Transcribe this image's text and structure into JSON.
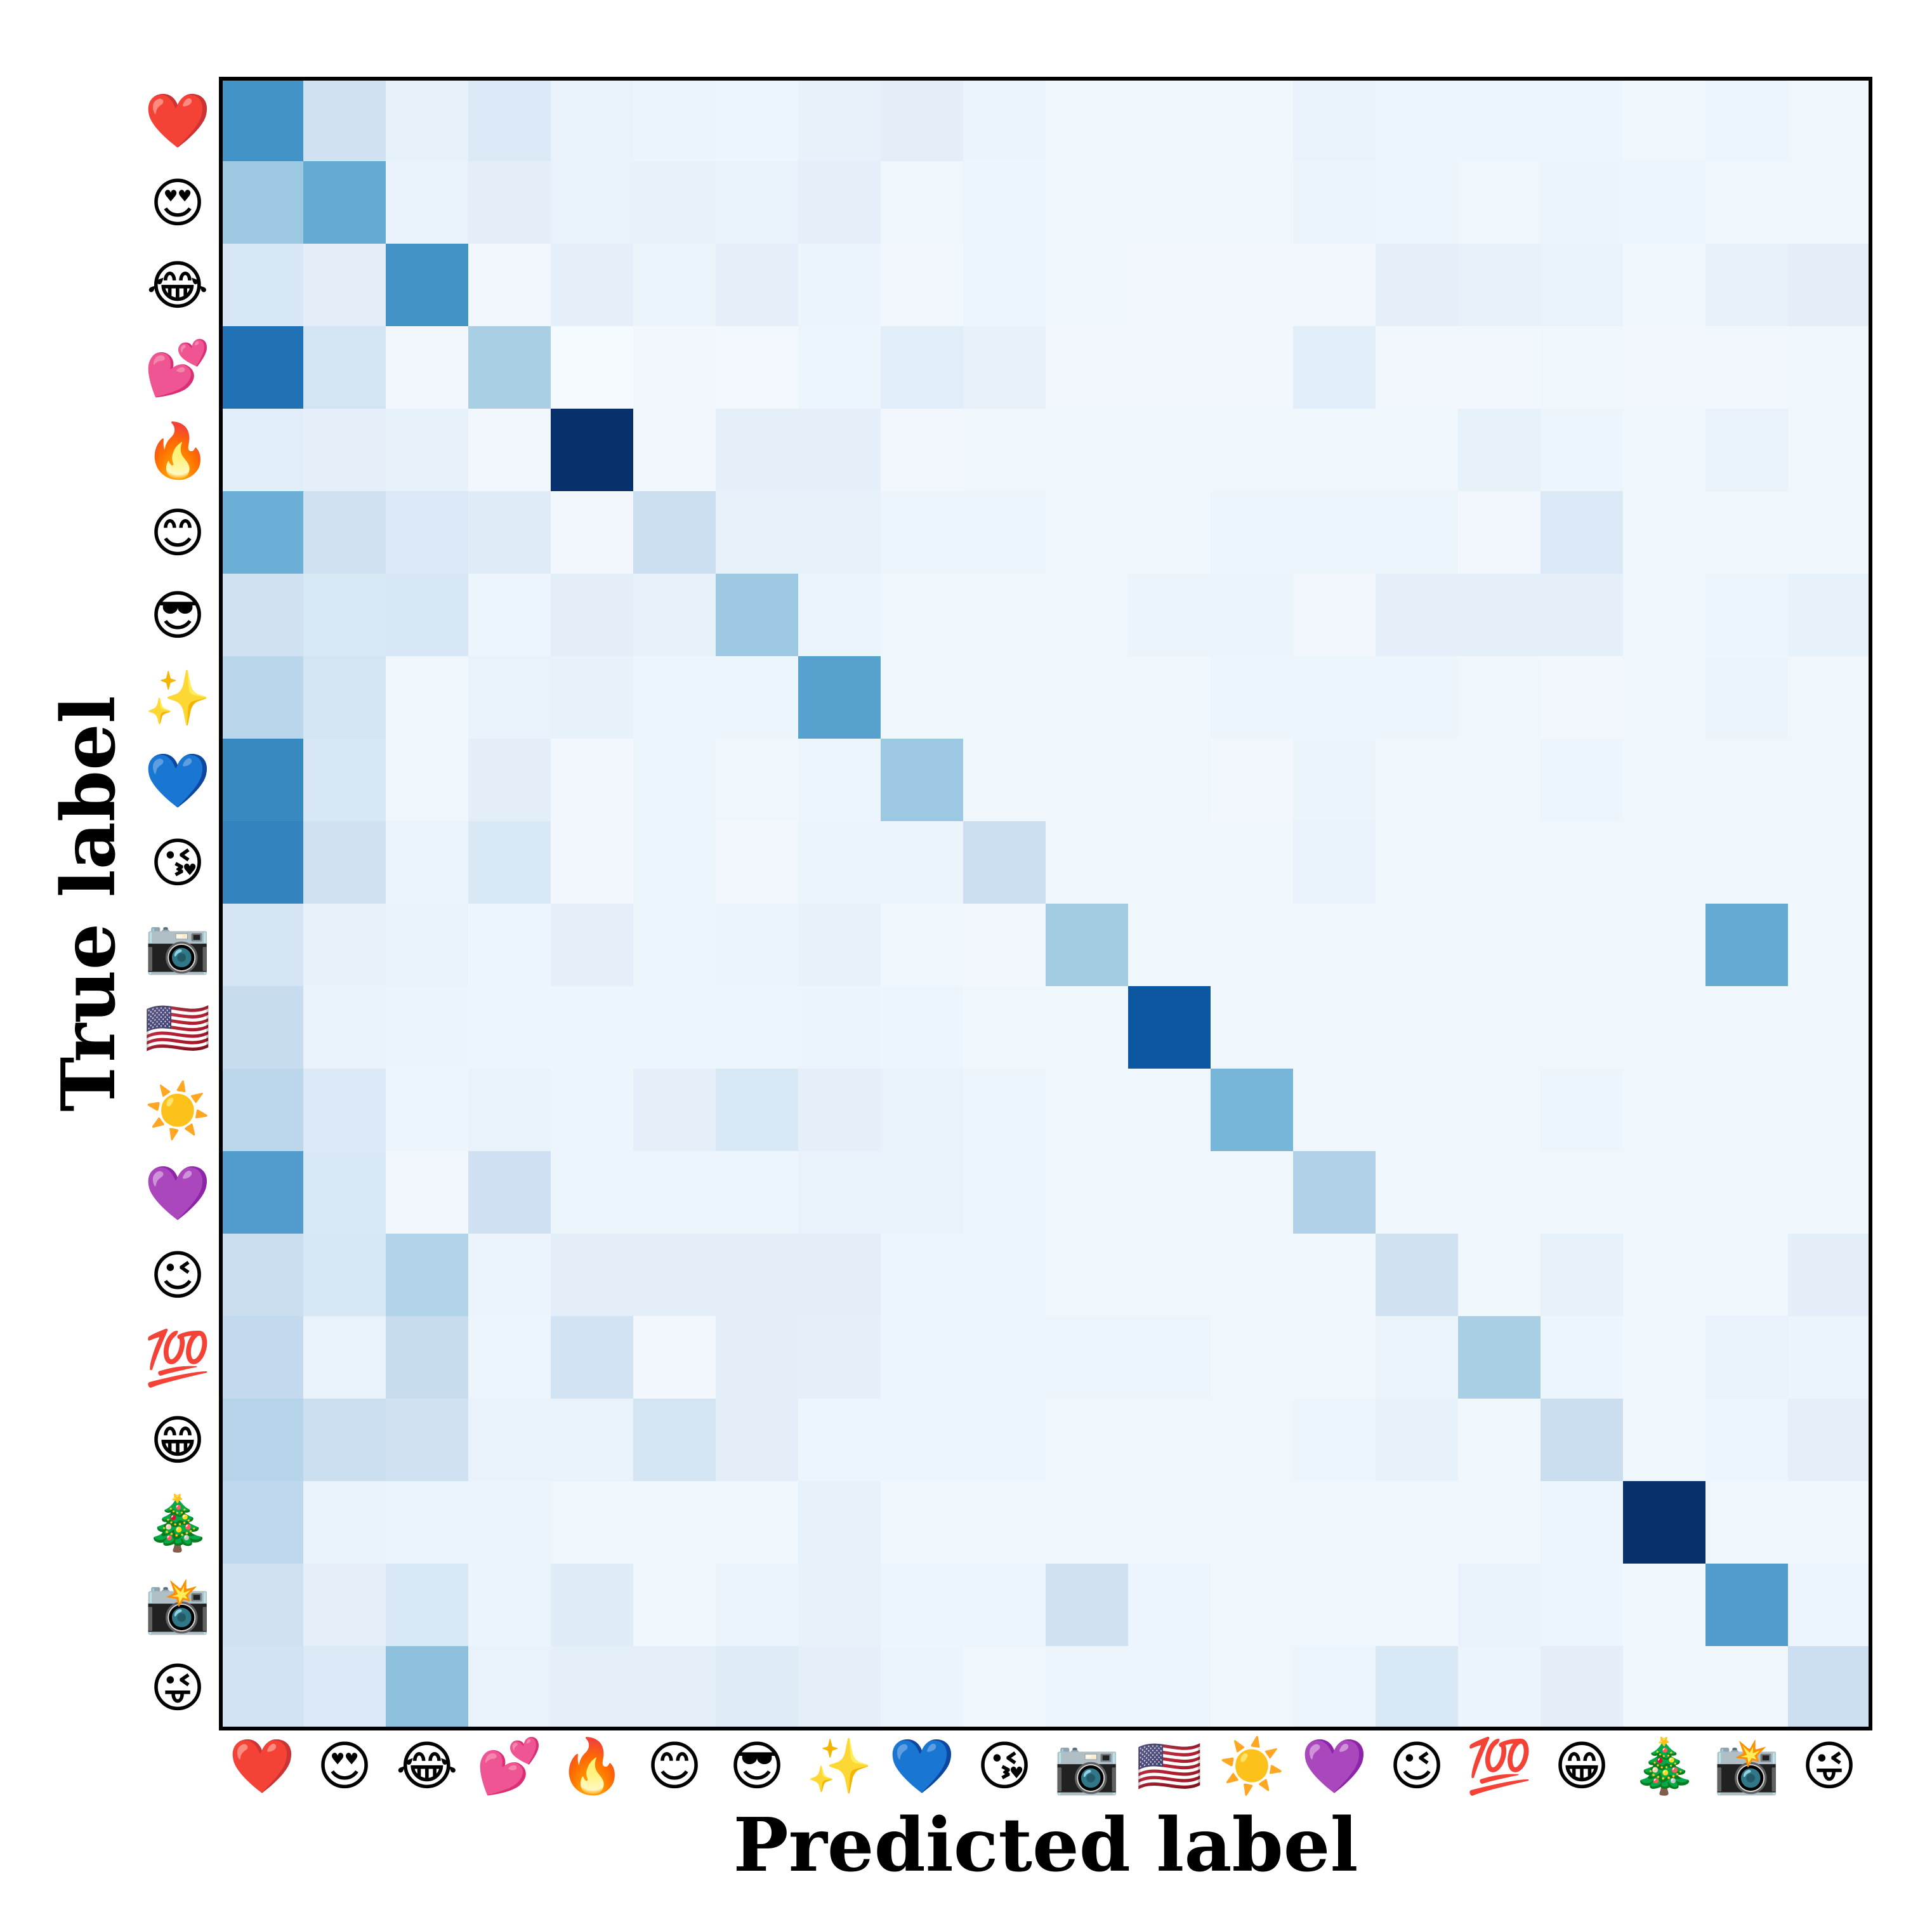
{
  "chart_data": {
    "type": "heatmap",
    "title": "",
    "xlabel": "Predicted label",
    "ylabel": "True label",
    "categories": [
      "❤️",
      "😍",
      "😂",
      "💕",
      "🔥",
      "😊",
      "😎",
      "✨",
      "💙",
      "😘",
      "📷",
      "🇺🇸",
      "☀️",
      "💜",
      "😉",
      "💯",
      "😁",
      "🎄",
      "📸",
      "😜"
    ],
    "colormap": "Blues",
    "value_range": [
      0,
      1
    ],
    "matrix": [
      [
        0.62,
        0.2,
        0.08,
        0.14,
        0.07,
        0.06,
        0.05,
        0.08,
        0.1,
        0.06,
        0.04,
        0.04,
        0.04,
        0.07,
        0.05,
        0.05,
        0.05,
        0.04,
        0.05,
        0.04
      ],
      [
        0.38,
        0.52,
        0.07,
        0.1,
        0.07,
        0.08,
        0.07,
        0.09,
        0.04,
        0.05,
        0.04,
        0.04,
        0.04,
        0.06,
        0.05,
        0.04,
        0.06,
        0.05,
        0.04,
        0.04
      ],
      [
        0.16,
        0.1,
        0.62,
        0.03,
        0.09,
        0.06,
        0.09,
        0.06,
        0.03,
        0.05,
        0.04,
        0.03,
        0.03,
        0.03,
        0.09,
        0.08,
        0.07,
        0.04,
        0.08,
        0.1
      ],
      [
        0.75,
        0.18,
        0.03,
        0.34,
        0.01,
        0.03,
        0.02,
        0.05,
        0.11,
        0.08,
        0.03,
        0.03,
        0.03,
        0.11,
        0.03,
        0.03,
        0.04,
        0.03,
        0.03,
        0.04
      ],
      [
        0.11,
        0.09,
        0.08,
        0.03,
        1.0,
        0.03,
        0.09,
        0.09,
        0.03,
        0.04,
        0.04,
        0.04,
        0.04,
        0.04,
        0.04,
        0.08,
        0.05,
        0.04,
        0.07,
        0.04
      ],
      [
        0.5,
        0.2,
        0.14,
        0.12,
        0.03,
        0.22,
        0.08,
        0.08,
        0.05,
        0.05,
        0.04,
        0.04,
        0.05,
        0.05,
        0.05,
        0.03,
        0.14,
        0.04,
        0.04,
        0.04
      ],
      [
        0.2,
        0.15,
        0.16,
        0.05,
        0.1,
        0.08,
        0.38,
        0.06,
        0.04,
        0.04,
        0.04,
        0.06,
        0.06,
        0.03,
        0.09,
        0.09,
        0.09,
        0.04,
        0.05,
        0.08
      ],
      [
        0.29,
        0.18,
        0.04,
        0.07,
        0.08,
        0.05,
        0.05,
        0.56,
        0.04,
        0.04,
        0.04,
        0.04,
        0.05,
        0.05,
        0.05,
        0.04,
        0.03,
        0.04,
        0.06,
        0.04
      ],
      [
        0.66,
        0.16,
        0.04,
        0.1,
        0.03,
        0.05,
        0.04,
        0.05,
        0.38,
        0.04,
        0.04,
        0.04,
        0.03,
        0.06,
        0.04,
        0.04,
        0.05,
        0.04,
        0.04,
        0.04
      ],
      [
        0.68,
        0.2,
        0.06,
        0.15,
        0.03,
        0.05,
        0.03,
        0.06,
        0.06,
        0.22,
        0.04,
        0.04,
        0.04,
        0.07,
        0.04,
        0.04,
        0.04,
        0.04,
        0.04,
        0.04
      ],
      [
        0.17,
        0.08,
        0.07,
        0.05,
        0.09,
        0.05,
        0.06,
        0.08,
        0.04,
        0.03,
        0.36,
        0.04,
        0.04,
        0.04,
        0.04,
        0.04,
        0.04,
        0.04,
        0.52,
        0.04
      ],
      [
        0.24,
        0.07,
        0.06,
        0.05,
        0.05,
        0.05,
        0.05,
        0.06,
        0.05,
        0.04,
        0.04,
        0.85,
        0.04,
        0.04,
        0.04,
        0.04,
        0.04,
        0.04,
        0.04,
        0.04
      ],
      [
        0.28,
        0.14,
        0.05,
        0.07,
        0.05,
        0.09,
        0.15,
        0.09,
        0.07,
        0.05,
        0.04,
        0.04,
        0.47,
        0.04,
        0.04,
        0.04,
        0.05,
        0.04,
        0.04,
        0.04
      ],
      [
        0.58,
        0.15,
        0.03,
        0.21,
        0.05,
        0.05,
        0.05,
        0.07,
        0.07,
        0.05,
        0.04,
        0.04,
        0.04,
        0.32,
        0.04,
        0.04,
        0.04,
        0.04,
        0.04,
        0.04
      ],
      [
        0.23,
        0.16,
        0.31,
        0.06,
        0.1,
        0.1,
        0.1,
        0.1,
        0.05,
        0.05,
        0.04,
        0.04,
        0.04,
        0.04,
        0.2,
        0.04,
        0.08,
        0.04,
        0.04,
        0.1
      ],
      [
        0.26,
        0.07,
        0.24,
        0.05,
        0.19,
        0.03,
        0.1,
        0.09,
        0.05,
        0.05,
        0.05,
        0.05,
        0.04,
        0.04,
        0.06,
        0.34,
        0.05,
        0.04,
        0.07,
        0.06
      ],
      [
        0.3,
        0.22,
        0.2,
        0.07,
        0.07,
        0.18,
        0.1,
        0.05,
        0.05,
        0.05,
        0.04,
        0.04,
        0.04,
        0.05,
        0.08,
        0.04,
        0.23,
        0.04,
        0.05,
        0.09
      ],
      [
        0.27,
        0.07,
        0.06,
        0.06,
        0.04,
        0.04,
        0.04,
        0.08,
        0.04,
        0.04,
        0.04,
        0.04,
        0.04,
        0.04,
        0.04,
        0.04,
        0.05,
        1.0,
        0.04,
        0.04
      ],
      [
        0.2,
        0.09,
        0.15,
        0.06,
        0.12,
        0.04,
        0.06,
        0.08,
        0.05,
        0.05,
        0.2,
        0.05,
        0.04,
        0.04,
        0.04,
        0.07,
        0.05,
        0.04,
        0.58,
        0.05
      ],
      [
        0.19,
        0.14,
        0.42,
        0.07,
        0.09,
        0.09,
        0.12,
        0.09,
        0.06,
        0.04,
        0.05,
        0.05,
        0.04,
        0.05,
        0.15,
        0.06,
        0.1,
        0.04,
        0.04,
        0.22
      ]
    ]
  }
}
